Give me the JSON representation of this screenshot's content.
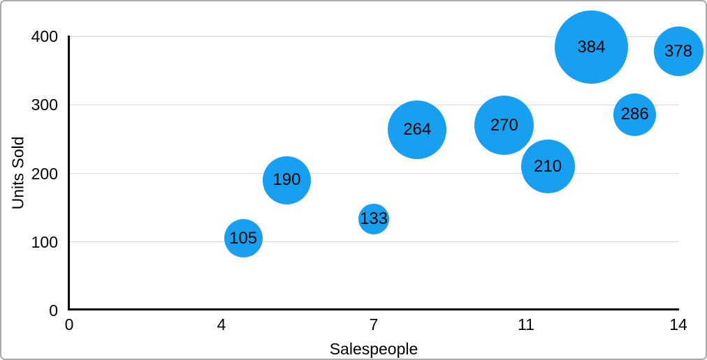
{
  "chart_data": {
    "type": "scatter",
    "subtype": "bubble",
    "title": "",
    "xlabel": "Salespeople",
    "ylabel": "Units Sold",
    "xlim": [
      0,
      14
    ],
    "ylim": [
      0,
      400
    ],
    "grid": "horizontal-only",
    "legend_position": "none",
    "x_ticks": [
      {
        "value": 0,
        "label": "0"
      },
      {
        "value": 3.5,
        "label": "4"
      },
      {
        "value": 7,
        "label": "7"
      },
      {
        "value": 10.5,
        "label": "11"
      },
      {
        "value": 14,
        "label": "14"
      }
    ],
    "y_ticks": [
      {
        "value": 0,
        "label": "0"
      },
      {
        "value": 100,
        "label": "100"
      },
      {
        "value": 200,
        "label": "200"
      },
      {
        "value": 300,
        "label": "300"
      },
      {
        "value": 400,
        "label": "400"
      }
    ],
    "series": [
      {
        "name": "Units Sold",
        "color": "#18a0f0",
        "points": [
          {
            "x": 4,
            "y": 105,
            "label": "105",
            "bubble_radius_px": 27.5
          },
          {
            "x": 5,
            "y": 190,
            "label": "190",
            "bubble_radius_px": 34.5
          },
          {
            "x": 7,
            "y": 133,
            "label": "133",
            "bubble_radius_px": 22
          },
          {
            "x": 8,
            "y": 264,
            "label": "264",
            "bubble_radius_px": 42
          },
          {
            "x": 10,
            "y": 270,
            "label": "270",
            "bubble_radius_px": 42.5
          },
          {
            "x": 11,
            "y": 210,
            "label": "210",
            "bubble_radius_px": 38.5
          },
          {
            "x": 12,
            "y": 384,
            "label": "384",
            "bubble_radius_px": 52.5
          },
          {
            "x": 13,
            "y": 286,
            "label": "286",
            "bubble_radius_px": 30.5
          },
          {
            "x": 14,
            "y": 378,
            "label": "378",
            "bubble_radius_px": 35.5
          }
        ]
      }
    ],
    "colors": {
      "bubble_fill": "#18a0f0",
      "axis_line": "#000000",
      "gridline": "#d9d9d9",
      "text": "#000000",
      "frame_border": "#ababab",
      "background": "#ffffff"
    }
  }
}
